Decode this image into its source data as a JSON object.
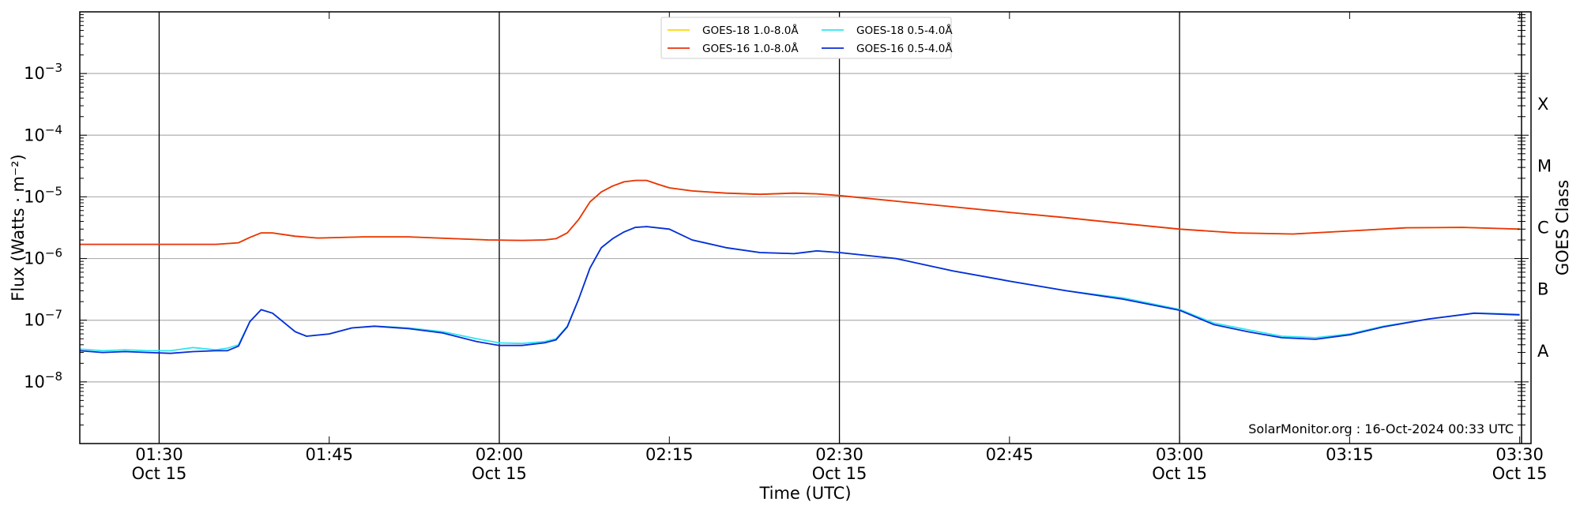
{
  "chart_data": {
    "type": "line",
    "xlabel": "Time (UTC)",
    "ylabel": "Flux (Watts · m⁻²)",
    "ylabel_right": "GOES Class",
    "y_scale": "log",
    "ylim": [
      1e-09,
      0.01
    ],
    "xlim": [
      "2024-10-15 01:23",
      "2024-10-15 03:31"
    ],
    "x_ticks": [
      {
        "time": "01:30",
        "date": "Oct 15",
        "at": "2024-10-15 01:30"
      },
      {
        "time": "01:45",
        "date": "",
        "at": "2024-10-15 01:45"
      },
      {
        "time": "02:00",
        "date": "Oct 15",
        "at": "2024-10-15 02:00"
      },
      {
        "time": "02:15",
        "date": "",
        "at": "2024-10-15 02:15"
      },
      {
        "time": "02:30",
        "date": "Oct 15",
        "at": "2024-10-15 02:30"
      },
      {
        "time": "02:45",
        "date": "",
        "at": "2024-10-15 02:45"
      },
      {
        "time": "03:00",
        "date": "Oct 15",
        "at": "2024-10-15 03:00"
      },
      {
        "time": "03:15",
        "date": "",
        "at": "2024-10-15 03:15"
      },
      {
        "time": "03:30",
        "date": "Oct 15",
        "at": "2024-10-15 03:30"
      }
    ],
    "y_ticks": [
      {
        "base": "10",
        "exp": "−8",
        "value": 1e-08
      },
      {
        "base": "10",
        "exp": "−7",
        "value": 1e-07
      },
      {
        "base": "10",
        "exp": "−6",
        "value": 1e-06
      },
      {
        "base": "10",
        "exp": "−5",
        "value": 1e-05
      },
      {
        "base": "10",
        "exp": "−4",
        "value": 0.0001
      },
      {
        "base": "10",
        "exp": "−3",
        "value": 0.001
      }
    ],
    "goes_classes": [
      {
        "label": "A",
        "value": 3.16e-08
      },
      {
        "label": "B",
        "value": 3.16e-07
      },
      {
        "label": "C",
        "value": 3.16e-06
      },
      {
        "label": "M",
        "value": 3.16e-05
      },
      {
        "label": "X",
        "value": 0.000316
      }
    ],
    "vertical_lines": [
      "2024-10-15 01:30",
      "2024-10-15 02:00",
      "2024-10-15 02:30",
      "2024-10-15 03:00"
    ],
    "grid": "horizontal",
    "legend_position": "top-center",
    "annotation": "SolarMonitor.org : 16-Oct-2024 00:33 UTC",
    "series": [
      {
        "name": "GOES-18 1.0-8.0Å",
        "color": "#ffd700",
        "x": [
          "2024-10-15 01:23",
          "2024-10-15 01:29",
          "2024-10-15 01:35",
          "2024-10-15 01:37",
          "2024-10-15 01:38",
          "2024-10-15 01:39",
          "2024-10-15 01:40",
          "2024-10-15 01:42",
          "2024-10-15 01:44",
          "2024-10-15 01:48",
          "2024-10-15 01:52",
          "2024-10-15 01:56",
          "2024-10-15 01:59",
          "2024-10-15 02:02",
          "2024-10-15 02:04",
          "2024-10-15 02:05",
          "2024-10-15 02:06",
          "2024-10-15 02:07",
          "2024-10-15 02:08",
          "2024-10-15 02:09",
          "2024-10-15 02:10",
          "2024-10-15 02:11",
          "2024-10-15 02:12",
          "2024-10-15 02:13",
          "2024-10-15 02:14",
          "2024-10-15 02:15",
          "2024-10-15 02:17",
          "2024-10-15 02:20",
          "2024-10-15 02:23",
          "2024-10-15 02:26",
          "2024-10-15 02:28",
          "2024-10-15 02:30",
          "2024-10-15 02:35",
          "2024-10-15 02:40",
          "2024-10-15 02:45",
          "2024-10-15 02:50",
          "2024-10-15 02:55",
          "2024-10-15 03:00",
          "2024-10-15 03:05",
          "2024-10-15 03:10",
          "2024-10-15 03:15",
          "2024-10-15 03:20",
          "2024-10-15 03:25",
          "2024-10-15 03:30"
        ],
        "values": [
          1.7e-06,
          1.7e-06,
          1.7e-06,
          1.8e-06,
          2.2e-06,
          2.6e-06,
          2.6e-06,
          2.3e-06,
          2.15e-06,
          2.25e-06,
          2.25e-06,
          2.1e-06,
          2e-06,
          1.97e-06,
          2e-06,
          2.1e-06,
          2.6e-06,
          4.3e-06,
          8.3e-06,
          1.2e-05,
          1.5e-05,
          1.75e-05,
          1.85e-05,
          1.85e-05,
          1.6e-05,
          1.4e-05,
          1.25e-05,
          1.15e-05,
          1.1e-05,
          1.15e-05,
          1.12e-05,
          1.05e-05,
          8.5e-06,
          6.9e-06,
          5.6e-06,
          4.6e-06,
          3.7e-06,
          3e-06,
          2.6e-06,
          2.5e-06,
          2.8e-06,
          3.15e-06,
          3.2e-06,
          3e-06
        ]
      },
      {
        "name": "GOES-16 1.0-8.0Å",
        "color": "#e8340f",
        "x": [
          "2024-10-15 01:23",
          "2024-10-15 01:29",
          "2024-10-15 01:35",
          "2024-10-15 01:37",
          "2024-10-15 01:38",
          "2024-10-15 01:39",
          "2024-10-15 01:40",
          "2024-10-15 01:42",
          "2024-10-15 01:44",
          "2024-10-15 01:48",
          "2024-10-15 01:52",
          "2024-10-15 01:56",
          "2024-10-15 01:59",
          "2024-10-15 02:02",
          "2024-10-15 02:04",
          "2024-10-15 02:05",
          "2024-10-15 02:06",
          "2024-10-15 02:07",
          "2024-10-15 02:08",
          "2024-10-15 02:09",
          "2024-10-15 02:10",
          "2024-10-15 02:11",
          "2024-10-15 02:12",
          "2024-10-15 02:13",
          "2024-10-15 02:14",
          "2024-10-15 02:15",
          "2024-10-15 02:17",
          "2024-10-15 02:20",
          "2024-10-15 02:23",
          "2024-10-15 02:26",
          "2024-10-15 02:28",
          "2024-10-15 02:30",
          "2024-10-15 02:35",
          "2024-10-15 02:40",
          "2024-10-15 02:45",
          "2024-10-15 02:50",
          "2024-10-15 02:55",
          "2024-10-15 03:00",
          "2024-10-15 03:05",
          "2024-10-15 03:10",
          "2024-10-15 03:15",
          "2024-10-15 03:20",
          "2024-10-15 03:25",
          "2024-10-15 03:30"
        ],
        "values": [
          1.7e-06,
          1.7e-06,
          1.7e-06,
          1.8e-06,
          2.2e-06,
          2.6e-06,
          2.6e-06,
          2.3e-06,
          2.15e-06,
          2.25e-06,
          2.25e-06,
          2.1e-06,
          2e-06,
          1.97e-06,
          2e-06,
          2.1e-06,
          2.6e-06,
          4.3e-06,
          8.3e-06,
          1.2e-05,
          1.5e-05,
          1.75e-05,
          1.85e-05,
          1.85e-05,
          1.6e-05,
          1.4e-05,
          1.25e-05,
          1.15e-05,
          1.1e-05,
          1.15e-05,
          1.12e-05,
          1.05e-05,
          8.5e-06,
          6.9e-06,
          5.6e-06,
          4.6e-06,
          3.7e-06,
          3e-06,
          2.6e-06,
          2.5e-06,
          2.8e-06,
          3.15e-06,
          3.2e-06,
          3e-06
        ]
      },
      {
        "name": "GOES-18 0.5-4.0Å",
        "color": "#2ee6f0",
        "x": [
          "2024-10-15 01:23",
          "2024-10-15 01:25",
          "2024-10-15 01:27",
          "2024-10-15 01:29",
          "2024-10-15 01:31",
          "2024-10-15 01:33",
          "2024-10-15 01:35",
          "2024-10-15 01:36",
          "2024-10-15 01:37",
          "2024-10-15 01:38",
          "2024-10-15 01:39",
          "2024-10-15 01:40",
          "2024-10-15 01:42",
          "2024-10-15 01:43",
          "2024-10-15 01:45",
          "2024-10-15 01:47",
          "2024-10-15 01:49",
          "2024-10-15 01:52",
          "2024-10-15 01:55",
          "2024-10-15 01:58",
          "2024-10-15 02:00",
          "2024-10-15 02:02",
          "2024-10-15 02:04",
          "2024-10-15 02:05",
          "2024-10-15 02:06",
          "2024-10-15 02:07",
          "2024-10-15 02:08",
          "2024-10-15 02:09",
          "2024-10-15 02:10",
          "2024-10-15 02:11",
          "2024-10-15 02:12",
          "2024-10-15 02:13",
          "2024-10-15 02:15",
          "2024-10-15 02:17",
          "2024-10-15 02:20",
          "2024-10-15 02:23",
          "2024-10-15 02:26",
          "2024-10-15 02:28",
          "2024-10-15 02:30",
          "2024-10-15 02:35",
          "2024-10-15 02:40",
          "2024-10-15 02:45",
          "2024-10-15 02:50",
          "2024-10-15 02:55",
          "2024-10-15 03:00",
          "2024-10-15 03:03",
          "2024-10-15 03:06",
          "2024-10-15 03:09",
          "2024-10-15 03:12",
          "2024-10-15 03:15",
          "2024-10-15 03:18",
          "2024-10-15 03:22",
          "2024-10-15 03:26",
          "2024-10-15 03:30"
        ],
        "values": [
          3.4e-08,
          3.2e-08,
          3.3e-08,
          3.2e-08,
          3.2e-08,
          3.6e-08,
          3.3e-08,
          3.5e-08,
          4e-08,
          9.5e-08,
          1.48e-07,
          1.3e-07,
          6.5e-08,
          5.5e-08,
          6e-08,
          7.5e-08,
          8e-08,
          7.5e-08,
          6.5e-08,
          5e-08,
          4.3e-08,
          4.2e-08,
          4.5e-08,
          5e-08,
          8e-08,
          2.2e-07,
          7e-07,
          1.5e-06,
          2.1e-06,
          2.7e-06,
          3.2e-06,
          3.3e-06,
          3e-06,
          2e-06,
          1.5e-06,
          1.25e-06,
          1.2e-06,
          1.33e-06,
          1.25e-06,
          1e-06,
          6.3e-07,
          4.3e-07,
          3e-07,
          2.3e-07,
          1.5e-07,
          9e-08,
          7e-08,
          5.5e-08,
          5.2e-08,
          6e-08,
          8e-08,
          1.05e-07,
          1.3e-07,
          1.25e-07
        ]
      },
      {
        "name": "GOES-16 0.5-4.0Å",
        "color": "#0b2bd6",
        "x": [
          "2024-10-15 01:23",
          "2024-10-15 01:25",
          "2024-10-15 01:27",
          "2024-10-15 01:29",
          "2024-10-15 01:31",
          "2024-10-15 01:33",
          "2024-10-15 01:35",
          "2024-10-15 01:36",
          "2024-10-15 01:37",
          "2024-10-15 01:38",
          "2024-10-15 01:39",
          "2024-10-15 01:40",
          "2024-10-15 01:42",
          "2024-10-15 01:43",
          "2024-10-15 01:45",
          "2024-10-15 01:47",
          "2024-10-15 01:49",
          "2024-10-15 01:52",
          "2024-10-15 01:55",
          "2024-10-15 01:58",
          "2024-10-15 02:00",
          "2024-10-15 02:02",
          "2024-10-15 02:04",
          "2024-10-15 02:05",
          "2024-10-15 02:06",
          "2024-10-15 02:07",
          "2024-10-15 02:08",
          "2024-10-15 02:09",
          "2024-10-15 02:10",
          "2024-10-15 02:11",
          "2024-10-15 02:12",
          "2024-10-15 02:13",
          "2024-10-15 02:15",
          "2024-10-15 02:17",
          "2024-10-15 02:20",
          "2024-10-15 02:23",
          "2024-10-15 02:26",
          "2024-10-15 02:28",
          "2024-10-15 02:30",
          "2024-10-15 02:35",
          "2024-10-15 02:40",
          "2024-10-15 02:45",
          "2024-10-15 02:50",
          "2024-10-15 02:55",
          "2024-10-15 03:00",
          "2024-10-15 03:03",
          "2024-10-15 03:06",
          "2024-10-15 03:09",
          "2024-10-15 03:12",
          "2024-10-15 03:15",
          "2024-10-15 03:18",
          "2024-10-15 03:22",
          "2024-10-15 03:26",
          "2024-10-15 03:30"
        ],
        "values": [
          3.2e-08,
          3e-08,
          3.1e-08,
          3e-08,
          2.9e-08,
          3.1e-08,
          3.2e-08,
          3.2e-08,
          3.8e-08,
          9.5e-08,
          1.48e-07,
          1.3e-07,
          6.5e-08,
          5.5e-08,
          6e-08,
          7.5e-08,
          8e-08,
          7.3e-08,
          6.2e-08,
          4.5e-08,
          3.9e-08,
          3.9e-08,
          4.3e-08,
          4.8e-08,
          7.8e-08,
          2.2e-07,
          7e-07,
          1.5e-06,
          2.1e-06,
          2.7e-06,
          3.2e-06,
          3.3e-06,
          3e-06,
          2e-06,
          1.5e-06,
          1.25e-06,
          1.2e-06,
          1.33e-06,
          1.25e-06,
          1e-06,
          6.3e-07,
          4.3e-07,
          3e-07,
          2.2e-07,
          1.45e-07,
          8.5e-08,
          6.5e-08,
          5.2e-08,
          4.9e-08,
          5.8e-08,
          7.8e-08,
          1.05e-07,
          1.3e-07,
          1.22e-07
        ]
      }
    ]
  }
}
